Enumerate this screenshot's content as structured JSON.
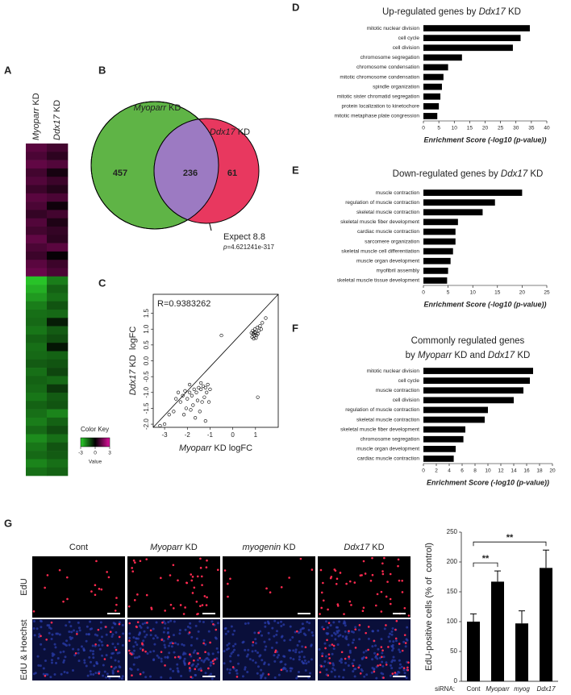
{
  "panels": [
    "A",
    "B",
    "C",
    "D",
    "E",
    "F",
    "G"
  ],
  "heatmap": {
    "columns": [
      [
        {
          "text": "Myoparr",
          "italic": true
        },
        " KD"
      ],
      [
        {
          "text": "Ddx17",
          "italic": true
        },
        " KD"
      ]
    ],
    "rows": [
      [
        1.2,
        0.9
      ],
      [
        1.0,
        0.6
      ],
      [
        1.3,
        1.1
      ],
      [
        0.9,
        0.3
      ],
      [
        1.1,
        0.8
      ],
      [
        0.8,
        0.5
      ],
      [
        1.2,
        1.0
      ],
      [
        1.0,
        0.2
      ],
      [
        0.7,
        0.9
      ],
      [
        1.1,
        0.4
      ],
      [
        0.9,
        0.7
      ],
      [
        1.3,
        0.6
      ],
      [
        1.0,
        1.2
      ],
      [
        0.8,
        0.1
      ],
      [
        1.2,
        0.8
      ],
      [
        1.4,
        1.0
      ],
      [
        -2.8,
        -1.8
      ],
      [
        -2.5,
        -1.4
      ],
      [
        -2.2,
        -1.6
      ],
      [
        -1.8,
        -1.2
      ],
      [
        -1.6,
        -1.5
      ],
      [
        -1.5,
        -0.4
      ],
      [
        -1.7,
        -1.3
      ],
      [
        -1.4,
        -1.1
      ],
      [
        -1.6,
        -0.3
      ],
      [
        -1.5,
        -1.4
      ],
      [
        -1.3,
        -1.2
      ],
      [
        -1.6,
        -1.0
      ],
      [
        -1.4,
        -1.5
      ],
      [
        -1.5,
        -0.8
      ],
      [
        -1.7,
        -1.3
      ],
      [
        -1.4,
        -1.2
      ],
      [
        -1.6,
        -1.9
      ],
      [
        -1.8,
        -1.4
      ],
      [
        -1.5,
        -1.1
      ],
      [
        -2.0,
        -1.6
      ],
      [
        -1.7,
        -1.2
      ],
      [
        -1.5,
        -1.3
      ],
      [
        -1.9,
        -1.6
      ],
      [
        -1.6,
        -1.4
      ]
    ],
    "color_key": {
      "title": "Color Key",
      "label": "Value",
      "range": [
        -3,
        3
      ],
      "ticks": [
        -3,
        0,
        3
      ],
      "colors": [
        "#2bd12b",
        "#000000",
        "#e0109e"
      ]
    }
  },
  "venn": {
    "sets": [
      {
        "name": [
          {
            "text": "Myoparr",
            "italic": true
          },
          " KD"
        ],
        "color": "#5fb446"
      },
      {
        "name": [
          {
            "text": "Ddx17",
            "italic": true
          },
          " KD"
        ],
        "color": "#e8385f"
      }
    ],
    "overlap_color": "#9c7ac2",
    "only_first": 457,
    "both": 236,
    "only_second": 61,
    "note": [
      "Expect 8.8",
      [
        {
          "text": "p",
          "italic": true
        },
        "=4.621241e-317"
      ]
    ]
  },
  "chart_data": [
    {
      "type": "scatter",
      "annotation": "R=0.9383262",
      "annotation_color": "#e03030",
      "xlabel": [
        {
          "text": "Myoparr",
          "italic": true
        },
        " KD logFC"
      ],
      "ylabel": [
        {
          "text": "Ddx17",
          "italic": true
        },
        " KD  logFC"
      ],
      "xlim": [
        -3.5,
        2.0
      ],
      "ylim": [
        -2.1,
        2.1
      ],
      "xticks": [
        -3,
        -2,
        -1,
        0,
        1
      ],
      "yticks": [
        {
          "value": -2,
          "label": "-2.0"
        },
        -1.5,
        {
          "value": -1,
          "label": "-1.0"
        },
        -0.5,
        {
          "value": 0,
          "label": "0.0"
        },
        0.5,
        {
          "value": 1,
          "label": "1.0"
        },
        1.5
      ],
      "x": [
        0.85,
        0.9,
        0.95,
        1.0,
        0.88,
        1.05,
        0.92,
        1.1,
        0.97,
        1.15,
        1.2,
        1.3,
        1.45,
        1.25,
        0.82,
        1.02,
        1.08,
        0.95,
        -1.1,
        -1.2,
        -1.3,
        -1.0,
        -1.15,
        -1.4,
        -1.5,
        -1.6,
        -1.7,
        -1.8,
        -1.9,
        -2.0,
        -2.1,
        -2.2,
        -2.3,
        -2.4,
        -2.5,
        -1.25,
        -1.35,
        -1.55,
        -1.75,
        -1.85,
        -2.05,
        -1.45,
        -1.65,
        -2.6,
        -2.8,
        -3.0,
        -3.2,
        -1.05,
        -1.4,
        -1.9,
        -2.15,
        -1.2,
        -0.5,
        1.1
      ],
      "y": [
        0.75,
        0.85,
        0.8,
        0.9,
        0.95,
        0.8,
        0.7,
        0.85,
        1.0,
        0.95,
        1.1,
        1.2,
        1.35,
        1.0,
        0.88,
        0.72,
        1.05,
        0.9,
        -0.75,
        -0.85,
        -0.8,
        -0.9,
        -1.0,
        -0.9,
        -0.85,
        -1.0,
        -0.9,
        -1.1,
        -1.0,
        -1.2,
        -0.95,
        -1.1,
        -1.3,
        -1.0,
        -1.2,
        -1.15,
        -1.3,
        -1.25,
        -1.4,
        -1.55,
        -1.5,
        -1.6,
        -1.8,
        -1.6,
        -1.7,
        -2.0,
        -2.05,
        -1.3,
        -0.7,
        -0.75,
        -1.7,
        -1.9,
        0.8,
        -1.15
      ]
    },
    {
      "type": "bar",
      "orientation": "horizontal",
      "color": "#000000",
      "title": [
        "Up-regulated genes by ",
        {
          "text": "Ddx17",
          "italic": true
        },
        " KD"
      ],
      "categories": [
        "mitotic nuclear division",
        "cell cycle",
        "cell division",
        "chromosome segregation",
        "chromosome condensation",
        "mitotic chromosome condensation",
        "spindle organization",
        "mitotic sister chromatid segregation",
        "protein localization to kinetochore",
        "mitotic metaphase plate congression"
      ],
      "values": [
        34.5,
        31.5,
        29,
        12.5,
        8,
        6.5,
        6,
        5.5,
        5,
        4.5
      ],
      "xlim": [
        0,
        40
      ],
      "xticks": [
        0,
        5,
        10,
        15,
        20,
        25,
        30,
        35,
        40
      ],
      "xlabel": "Enrichment Score (-log10 (p-value))"
    },
    {
      "type": "bar",
      "orientation": "horizontal",
      "color": "#000000",
      "title": [
        "Down-regulated genes by ",
        {
          "text": "Ddx17",
          "italic": true
        },
        " KD"
      ],
      "categories": [
        "muscle contraction",
        "regulation of muscle contraction",
        "skeletal muscle contraction",
        "skeletal muscle fiber development",
        "cardiac muscle contraction",
        "sarcomere organization",
        "skeletal muscle cell differentiation",
        "muscle organ development",
        "myofibril assembly",
        "skeletal muscle tissue development"
      ],
      "values": [
        20,
        14.5,
        12,
        7,
        6.5,
        6.5,
        6,
        5.5,
        5,
        4.8
      ],
      "xlim": [
        0,
        25
      ],
      "xticks": [
        0,
        5,
        10,
        15,
        20,
        25
      ],
      "xlabel": "Enrichment Score (-log10 (p-value))"
    },
    {
      "type": "bar",
      "orientation": "horizontal",
      "color": "#000000",
      "title": "Commonly regulated genes",
      "subtitle": [
        "by ",
        {
          "text": "Myoparr",
          "italic": true
        },
        " KD and ",
        {
          "text": "Ddx17",
          "italic": true
        },
        " KD"
      ],
      "categories": [
        "mitotic nuclear division",
        "cell cycle",
        "muscle contraction",
        "cell division",
        "regulation of muscle contraction",
        "skeletal muscle contraction",
        "skeletal muscle fiber development",
        "chromosome segregation",
        "muscle organ development",
        "cardiac muscle contraction"
      ],
      "values": [
        17,
        16.5,
        15.5,
        14,
        10,
        9.5,
        6.5,
        6.2,
        5,
        4.7
      ],
      "xlim": [
        0,
        20
      ],
      "xticks": [
        0,
        2,
        4,
        6,
        8,
        10,
        12,
        14,
        16,
        18,
        20
      ],
      "xlabel": "Enrichment Score (-log10 (p-value))"
    },
    {
      "type": "bar",
      "orientation": "vertical",
      "color": "#000000",
      "category_label": "siRNA:",
      "categories": [
        "Cont",
        "Myoparr",
        "myog",
        "Ddx17"
      ],
      "values": [
        100,
        167,
        97,
        190
      ],
      "errors": [
        13,
        18,
        21,
        30
      ],
      "ylabel": "EdU-positive cells (% of  control)",
      "ylim": [
        0,
        250
      ],
      "yticks": [
        0,
        50,
        100,
        150,
        200,
        250
      ],
      "significance": [
        {
          "label": "**",
          "between": [
            "Cont",
            "Myoparr"
          ]
        },
        {
          "label": "**",
          "between": [
            "Cont",
            "Ddx17"
          ]
        }
      ]
    }
  ],
  "microscopy": {
    "columns": [
      "Cont",
      [
        {
          "text": "Myoparr",
          "italic": true
        },
        " KD"
      ],
      [
        {
          "text": "myogenin",
          "italic": true
        },
        " KD"
      ],
      [
        {
          "text": "Ddx17",
          "italic": true
        },
        " KD"
      ]
    ],
    "rows": [
      "EdU",
      "EdU & Hoechst"
    ]
  }
}
